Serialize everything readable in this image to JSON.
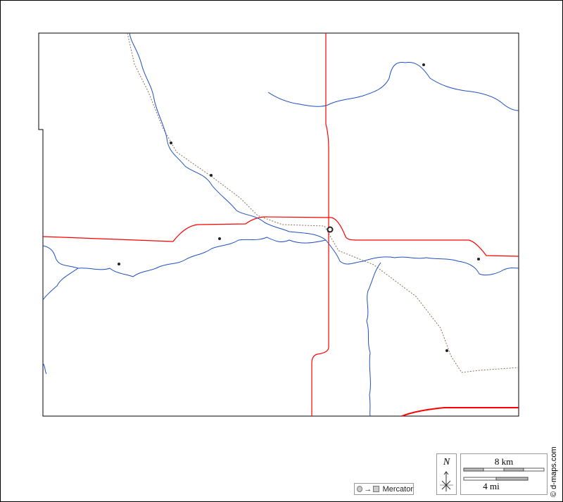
{
  "map": {
    "projection_label": "Mercator",
    "north_label": "N",
    "scale_km_label": "8 km",
    "scale_mi_label": "4 mi",
    "credit": "© d-maps.com",
    "colors": {
      "roads": "#ff0000",
      "rivers": "#1f4fbf",
      "railway": "#8b6f5a",
      "border": "#000000"
    },
    "icons": [
      "town-dot",
      "county-seat-circle",
      "north-arrow-icon",
      "scale-bar"
    ]
  }
}
